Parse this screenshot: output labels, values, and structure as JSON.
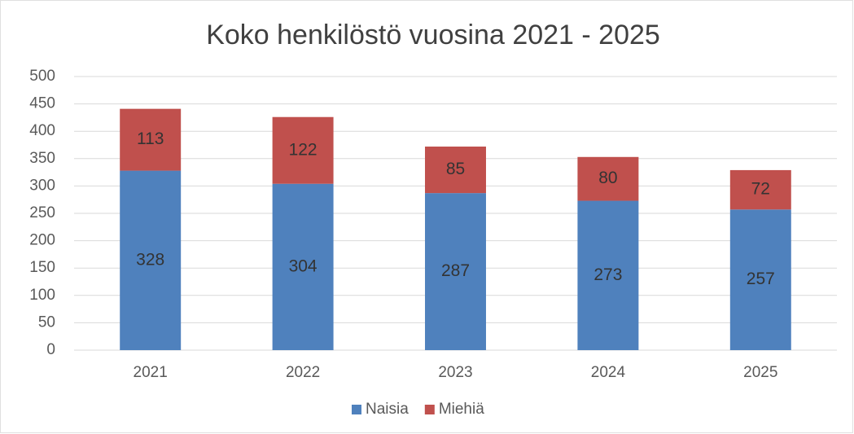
{
  "chart_data": {
    "type": "bar",
    "stacked": true,
    "title": "Koko henkilöstö vuosina 2021 - 2025",
    "categories": [
      "2021",
      "2022",
      "2023",
      "2024",
      "2025"
    ],
    "series": [
      {
        "name": "Naisia",
        "color": "#4f81bd",
        "values": [
          328,
          304,
          287,
          273,
          257
        ]
      },
      {
        "name": "Miehiä",
        "color": "#c0504d",
        "values": [
          113,
          122,
          85,
          80,
          72
        ]
      }
    ],
    "ylim": [
      0,
      500
    ],
    "yticks": [
      0,
      50,
      100,
      150,
      200,
      250,
      300,
      350,
      400,
      450,
      500
    ],
    "grid": true,
    "legend": "bottom"
  }
}
